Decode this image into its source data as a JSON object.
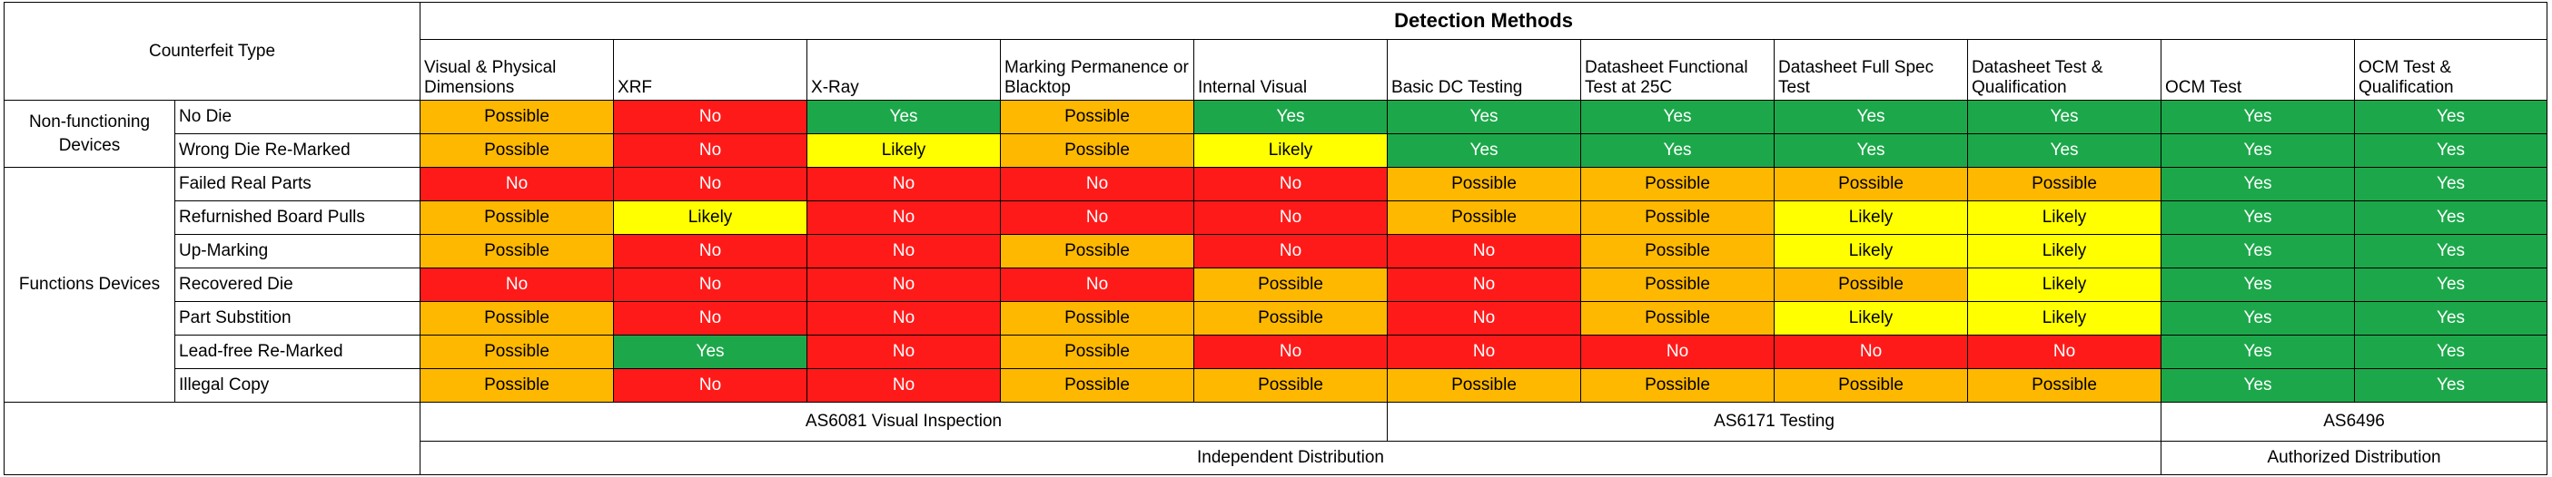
{
  "header": {
    "counterfeit_type": "Counterfeit Type",
    "detection_methods": "Detection Methods"
  },
  "columns": [
    "Visual & Physical Dimensions",
    "XRF",
    "X-Ray",
    "Marking Permanence or Blacktop",
    "Internal Visual",
    "Basic DC Testing",
    "Datasheet Functional Test at 25C",
    "Datasheet Full Spec Test",
    "Datasheet Test & Qualification",
    "OCM Test",
    "OCM Test & Qualification"
  ],
  "groups": [
    {
      "label": "Non-functioning Devices",
      "rows": [
        {
          "label": "No Die",
          "values": [
            "Possible",
            "No",
            "Yes",
            "Possible",
            "Yes",
            "Yes",
            "Yes",
            "Yes",
            "Yes",
            "Yes",
            "Yes"
          ]
        },
        {
          "label": "Wrong Die Re-Marked",
          "values": [
            "Possible",
            "No",
            "Likely",
            "Possible",
            "Likely",
            "Yes",
            "Yes",
            "Yes",
            "Yes",
            "Yes",
            "Yes"
          ]
        }
      ]
    },
    {
      "label": "Functions Devices",
      "rows": [
        {
          "label": "Failed Real Parts",
          "values": [
            "No",
            "No",
            "No",
            "No",
            "No",
            "Possible",
            "Possible",
            "Possible",
            "Possible",
            "Yes",
            "Yes"
          ]
        },
        {
          "label": "Refurnished Board Pulls",
          "values": [
            "Possible",
            "Likely",
            "No",
            "No",
            "No",
            "Possible",
            "Possible",
            "Likely",
            "Likely",
            "Yes",
            "Yes"
          ]
        },
        {
          "label": "Up-Marking",
          "values": [
            "Possible",
            "No",
            "No",
            "Possible",
            "No",
            "No",
            "Possible",
            "Likely",
            "Likely",
            "Yes",
            "Yes"
          ]
        },
        {
          "label": "Recovered Die",
          "values": [
            "No",
            "No",
            "No",
            "No",
            "Possible",
            "No",
            "Possible",
            "Possible",
            "Likely",
            "Yes",
            "Yes"
          ]
        },
        {
          "label": "Part Substition",
          "values": [
            "Possible",
            "No",
            "No",
            "Possible",
            "Possible",
            "No",
            "Possible",
            "Likely",
            "Likely",
            "Yes",
            "Yes"
          ]
        },
        {
          "label": "Lead-free Re-Marked",
          "values": [
            "Possible",
            "Yes",
            "No",
            "Possible",
            "No",
            "No",
            "No",
            "No",
            "No",
            "Yes",
            "Yes"
          ]
        },
        {
          "label": "Illegal Copy",
          "values": [
            "Possible",
            "No",
            "No",
            "Possible",
            "Possible",
            "Possible",
            "Possible",
            "Possible",
            "Possible",
            "Yes",
            "Yes"
          ]
        }
      ]
    }
  ],
  "footer": {
    "standards": [
      "AS6081 Visual Inspection",
      "AS6171 Testing",
      "AS6496"
    ],
    "distribution": [
      "Independent Distribution",
      "Authorized Distribution"
    ]
  },
  "colors": {
    "Yes": "#1ca84a",
    "Likely": "#ffff00",
    "Possible": "#ffb800",
    "No": "#ff1a1a"
  }
}
